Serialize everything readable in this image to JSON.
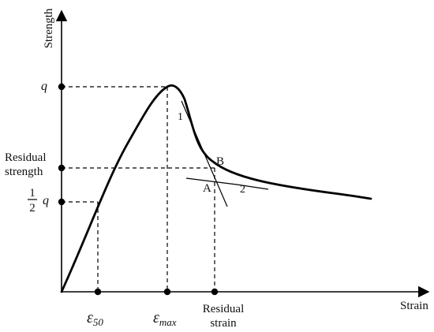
{
  "axes": {
    "y_label": "Strength",
    "x_label": "Strain"
  },
  "y_ticks": {
    "q": "q",
    "residual_strength_line1": "Residual",
    "residual_strength_line2": "strength",
    "half_num": "1",
    "half_den": "2",
    "half_q": "q"
  },
  "x_ticks": {
    "eps50_base": "ε",
    "eps50_sub": "50",
    "epsmax_base": "ε",
    "epsmax_sub": "max",
    "residual_strain_line1": "Residual",
    "residual_strain_line2": "strain"
  },
  "annotations": {
    "tangent_1": "1",
    "tangent_2": "2",
    "point_a": "A",
    "point_b": "B"
  }
}
